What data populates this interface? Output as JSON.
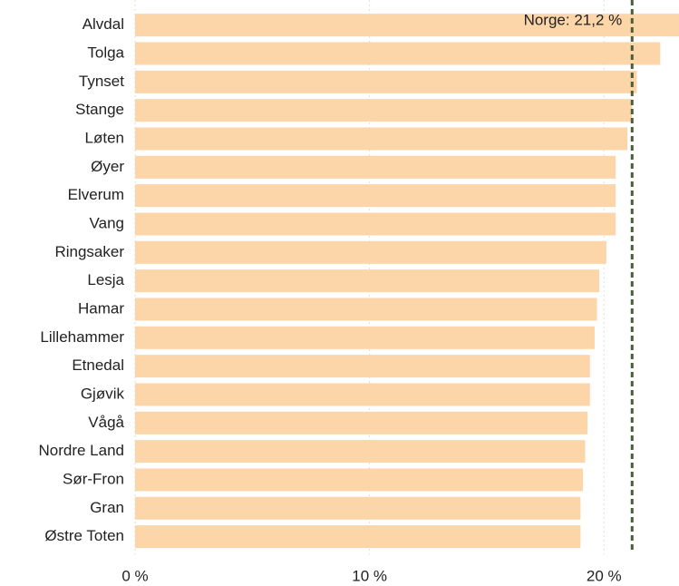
{
  "chart_data": {
    "type": "bar",
    "orientation": "horizontal",
    "categories": [
      "Alvdal",
      "Tolga",
      "Tynset",
      "Stange",
      "Løten",
      "Øyer",
      "Elverum",
      "Vang",
      "Ringsaker",
      "Lesja",
      "Hamar",
      "Lillehammer",
      "Etnedal",
      "Gjøvik",
      "Vågå",
      "Nordre Land",
      "Sør-Fron",
      "Gran",
      "Østre Toten"
    ],
    "values": [
      23.5,
      22.4,
      21.4,
      21.2,
      21.0,
      20.5,
      20.5,
      20.5,
      20.1,
      19.8,
      19.7,
      19.6,
      19.4,
      19.4,
      19.3,
      19.2,
      19.1,
      19.0,
      19.0
    ],
    "color": "#fcd5a8",
    "xlim": [
      0,
      23.2
    ],
    "xticks": [
      {
        "value": 0,
        "label": "0 %"
      },
      {
        "value": 10,
        "label": "10 %"
      },
      {
        "value": 20,
        "label": "20 %"
      }
    ],
    "grid": true,
    "reference_line": {
      "value": 21.2,
      "label": "Norge: 21,2 %",
      "color": "#4b5e3a"
    }
  }
}
